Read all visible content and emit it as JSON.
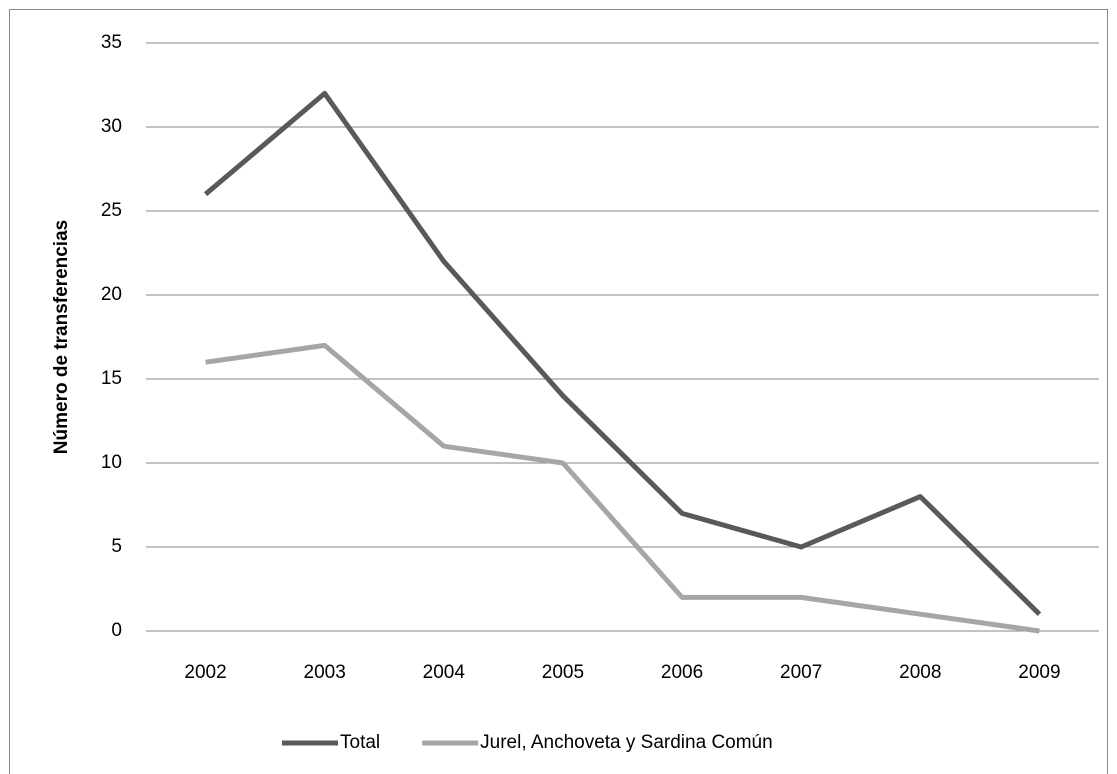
{
  "chart_data": {
    "type": "line",
    "y_label": "Número de transferencias",
    "categories": [
      "2002",
      "2003",
      "2004",
      "2005",
      "2006",
      "2007",
      "2008",
      "2009"
    ],
    "series": [
      {
        "name": "Total",
        "color": "#595959",
        "values": [
          26,
          32,
          22,
          14,
          7,
          5,
          8,
          1
        ]
      },
      {
        "name": "Jurel, Anchoveta y Sardina Común",
        "color": "#a6a6a6",
        "values": [
          16,
          17,
          11,
          10,
          2,
          2,
          1,
          0
        ]
      }
    ],
    "ylim": [
      0,
      35
    ],
    "yticks": [
      0,
      5,
      10,
      15,
      20,
      25,
      30,
      35
    ],
    "grid": true,
    "legend": "bottom"
  }
}
